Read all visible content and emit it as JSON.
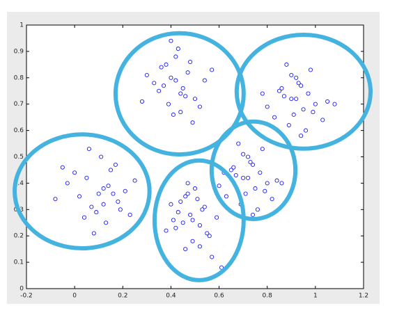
{
  "chart_data": {
    "type": "scatter",
    "xlim": [
      -0.2,
      1.2
    ],
    "ylim": [
      0,
      1
    ],
    "xticks": [
      -0.2,
      0,
      0.2,
      0.4,
      0.6,
      0.8,
      1,
      1.2
    ],
    "yticks": [
      0,
      0.1,
      0.2,
      0.3,
      0.4,
      0.5,
      0.6,
      0.7,
      0.8,
      0.9,
      1
    ],
    "series": [
      {
        "color": "#1a1aff",
        "x": [
          0.12,
          0.05,
          0.18,
          0.02,
          0.15,
          0.09,
          -0.03,
          0.21,
          0.11,
          0.07,
          0.25,
          0.13,
          -0.08,
          0.17,
          0.04,
          0.1,
          0.19,
          0.0,
          0.14,
          0.08,
          0.23,
          -0.05,
          0.12,
          0.16,
          0.06,
          0.4,
          0.45,
          0.36,
          0.5,
          0.42,
          0.33,
          0.47,
          0.39,
          0.54,
          0.44,
          0.3,
          0.48,
          0.41,
          0.37,
          0.52,
          0.43,
          0.46,
          0.35,
          0.49,
          0.38,
          0.57,
          0.42,
          0.28,
          0.44,
          0.4,
          0.9,
          0.95,
          0.86,
          1.0,
          0.92,
          0.83,
          0.97,
          0.89,
          1.05,
          0.94,
          0.8,
          0.98,
          0.91,
          0.87,
          1.03,
          0.93,
          0.96,
          0.85,
          0.99,
          0.88,
          1.08,
          0.92,
          0.78,
          0.94,
          0.9,
          0.7,
          0.75,
          0.66,
          0.8,
          0.72,
          0.63,
          0.77,
          0.69,
          0.84,
          0.74,
          0.6,
          0.78,
          0.71,
          0.67,
          0.82,
          0.73,
          0.76,
          0.65,
          0.79,
          0.68,
          0.86,
          0.72,
          0.62,
          0.74,
          0.7,
          0.48,
          0.52,
          0.44,
          0.56,
          0.47,
          0.41,
          0.53,
          0.46,
          0.59,
          0.5,
          0.38,
          0.54,
          0.49,
          0.43,
          0.57,
          0.51,
          0.45,
          0.4,
          0.55,
          0.47,
          0.61,
          0.49,
          0.42,
          0.52,
          0.46
        ],
        "y": [
          0.38,
          0.42,
          0.33,
          0.35,
          0.45,
          0.29,
          0.4,
          0.37,
          0.5,
          0.31,
          0.41,
          0.25,
          0.34,
          0.47,
          0.27,
          0.36,
          0.3,
          0.44,
          0.39,
          0.21,
          0.28,
          0.46,
          0.32,
          0.36,
          0.53,
          0.8,
          0.76,
          0.84,
          0.72,
          0.88,
          0.78,
          0.82,
          0.7,
          0.79,
          0.74,
          0.81,
          0.86,
          0.66,
          0.77,
          0.69,
          0.91,
          0.73,
          0.75,
          0.63,
          0.85,
          0.83,
          0.79,
          0.71,
          0.67,
          0.94,
          0.72,
          0.68,
          0.76,
          0.7,
          0.8,
          0.65,
          0.74,
          0.62,
          0.71,
          0.77,
          0.69,
          0.83,
          0.66,
          0.73,
          0.64,
          0.78,
          0.6,
          0.75,
          0.67,
          0.85,
          0.7,
          0.72,
          0.74,
          0.58,
          0.81,
          0.42,
          0.38,
          0.46,
          0.4,
          0.5,
          0.35,
          0.44,
          0.32,
          0.41,
          0.47,
          0.39,
          0.53,
          0.36,
          0.43,
          0.34,
          0.48,
          0.3,
          0.45,
          0.37,
          0.55,
          0.4,
          0.42,
          0.44,
          0.28,
          0.51,
          0.28,
          0.24,
          0.33,
          0.2,
          0.36,
          0.26,
          0.3,
          0.15,
          0.27,
          0.38,
          0.22,
          0.31,
          0.18,
          0.29,
          0.12,
          0.34,
          0.25,
          0.32,
          0.21,
          0.4,
          0.08,
          0.26,
          0.23,
          0.16,
          0.35
        ]
      }
    ],
    "clusters": {
      "color": "#45b3df",
      "cx": [
        0.031,
        0.436,
        0.951,
        0.743,
        0.517
      ],
      "cy": [
        0.369,
        0.739,
        0.747,
        0.449,
        0.259
      ],
      "rx": [
        0.28,
        0.266,
        0.278,
        0.174,
        0.185
      ],
      "ry": [
        0.216,
        0.23,
        0.216,
        0.185,
        0.227
      ]
    }
  }
}
